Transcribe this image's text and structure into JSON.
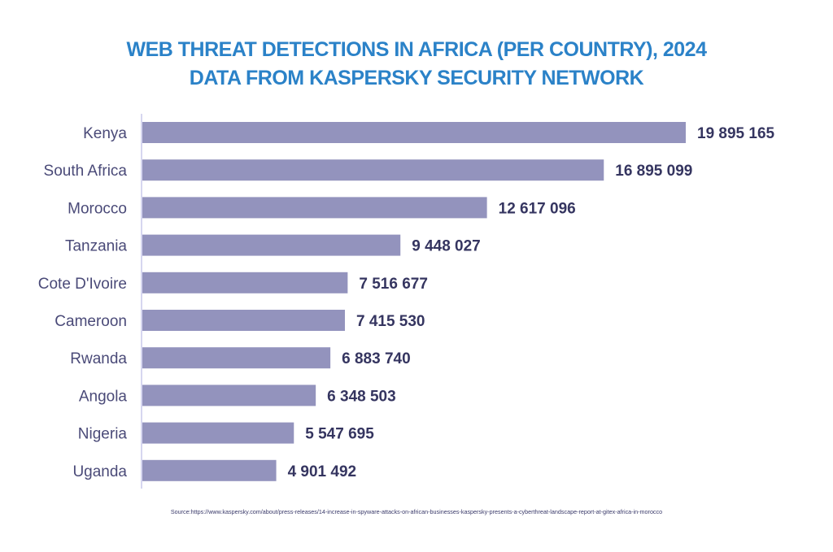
{
  "chart_data": {
    "type": "bar",
    "orientation": "horizontal",
    "title": "WEB THREAT DETECTIONS IN AFRICA (PER COUNTRY), 2024",
    "subtitle": "DATA FROM KASPERSKY SECURITY NETWORK",
    "xlabel": "",
    "ylabel": "",
    "categories": [
      "Kenya",
      "South Africa",
      "Morocco",
      "Tanzania",
      "Cote D'Ivoire",
      "Cameroon",
      "Rwanda",
      "Angola",
      "Nigeria",
      "Uganda"
    ],
    "values": [
      19895165,
      16895099,
      12617096,
      9448027,
      7516677,
      7415530,
      6883740,
      6348503,
      5547695,
      4901492
    ],
    "value_labels": [
      "19 895 165",
      "16 895 099",
      "12 617 096",
      "9 448 027",
      "7 516 677",
      "7 415 530",
      "6 883 740",
      "6 348 503",
      "5 547 695",
      "4 901 492"
    ],
    "xlim": [
      0,
      19895165
    ],
    "grid": false,
    "legend": "none",
    "colors": {
      "bar": "#9393bd",
      "title": "#2b82c8",
      "axis": "#d6d6f0",
      "label": "#4a4a78",
      "value": "#353560"
    },
    "source": "Source:https://www.kaspersky.com/about/press-releases/14-increase-in-spyware-attacks-on-african-businesses-kaspersky-presents-a-cyberthreat-landscape-report-at-gitex-africa-in-morocco"
  }
}
